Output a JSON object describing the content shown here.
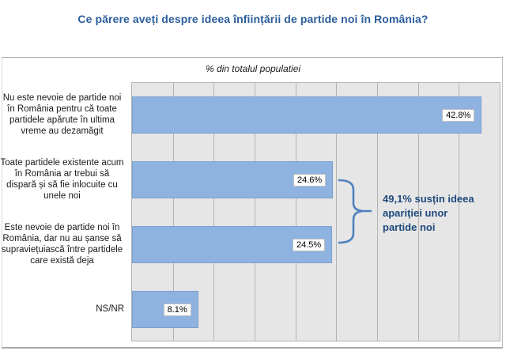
{
  "title": "Ce părere aveți despre ideea înființării de partide noi în România?",
  "chart_data": {
    "type": "bar",
    "orientation": "horizontal",
    "subtitle": "% din totalul populatiei",
    "categories": [
      "Nu este nevoie de partide noi în România pentru că toate partidele apărute în ultima vreme au dezamăgit",
      "Toate partidele existente acum în România ar trebui să dispară și să fie inlocuite cu unele noi",
      "Este nevoie de partide noi în România, dar nu au șanse să supraviețuiască între partidele care există deja",
      "NS/NR"
    ],
    "values": [
      42.8,
      24.6,
      24.5,
      8.1
    ],
    "value_labels": [
      "42.8%",
      "24.6%",
      "24.5%",
      "8.1%"
    ],
    "xlim": [
      0,
      45
    ],
    "grid_step": 5,
    "grid": true,
    "legend": "none",
    "annotation": {
      "line1": "49,1% susțin ideea",
      "line2": "apariției unor",
      "line3": "partide noi",
      "linked_bars": [
        2,
        3
      ]
    },
    "colors": {
      "title": "#2B5D9B",
      "bar_fill": "#8FB3E1",
      "plot_background": "#E6E6E6",
      "gridline": "#B3B3B3",
      "annotation_text": "#1F497D",
      "brace": "#4F81BD"
    }
  }
}
